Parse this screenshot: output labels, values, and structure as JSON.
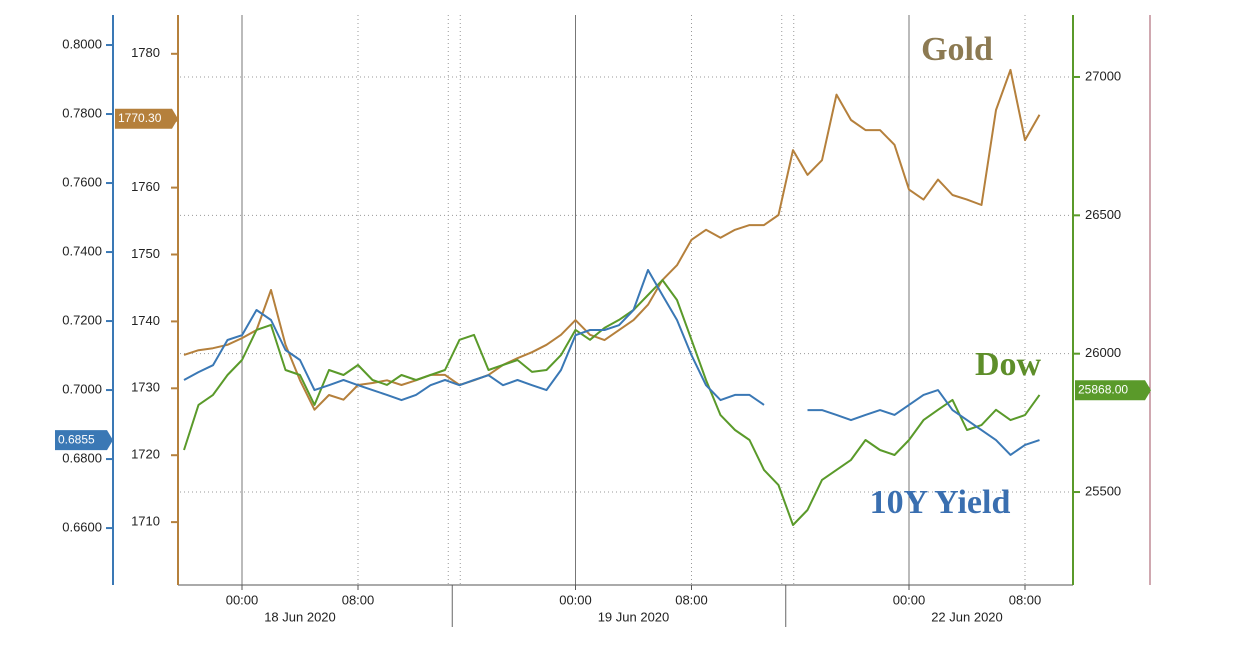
{
  "chart_data": {
    "type": "line",
    "categories": [
      null,
      null,
      null,
      null,
      "00:00",
      null,
      null,
      null,
      null,
      null,
      null,
      null,
      "08:00",
      null,
      null,
      null,
      null,
      null,
      null,
      null,
      null,
      null,
      null,
      null,
      null,
      null,
      null,
      "00:00",
      null,
      null,
      null,
      null,
      null,
      null,
      null,
      "08:00",
      null,
      null,
      null,
      null,
      null,
      null,
      null,
      null,
      null,
      null,
      null,
      null,
      null,
      null,
      "00:00",
      null,
      null,
      null,
      null,
      null,
      null,
      null,
      "08:00",
      null
    ],
    "date_labels": [
      "18 Jun 2020",
      "19 Jun 2020",
      "22 Jun 2020"
    ],
    "ylim": [
      1700.6,
      1785.8
    ],
    "yticks": [
      1710,
      1720,
      1730,
      1740,
      1750,
      1760,
      1770,
      1780
    ],
    "y2lim": [
      25164,
      27224
    ],
    "y2ticks": [
      25500,
      26000,
      26500,
      27000
    ],
    "y3lim": [
      0.6435,
      0.8087
    ],
    "y3ticks": [
      {
        "value": 0.66,
        "label": "0.6600"
      },
      {
        "value": 0.68,
        "label": "0.6800"
      },
      {
        "value": 0.7,
        "label": "0.7000"
      },
      {
        "value": 0.72,
        "label": "0.7200"
      },
      {
        "value": 0.74,
        "label": "0.7400"
      },
      {
        "value": 0.76,
        "label": "0.7600"
      },
      {
        "value": 0.78,
        "label": "0.7800"
      },
      {
        "value": 0.8,
        "label": "0.8000"
      }
    ],
    "grid": true,
    "series": [
      {
        "name": "Gold",
        "color": "#b5803c",
        "axis": "y",
        "last_value": {
          "value": 1770.3,
          "label": "1770.30"
        },
        "values": [
          1735.0,
          1735.7,
          1736.0,
          1736.5,
          1737.5,
          1738.7,
          1744.7,
          1736.5,
          1731.2,
          1726.8,
          1729.0,
          1728.3,
          1730.5,
          1730.8,
          1731.2,
          1730.5,
          1731.2,
          1732.0,
          1732.0,
          1730.5,
          1731.2,
          1732.0,
          1733.5,
          1734.5,
          1735.4,
          1736.5,
          1738.0,
          1740.2,
          1738.0,
          1737.2,
          1738.7,
          1740.2,
          1742.5,
          1746.2,
          1748.4,
          1752.2,
          1753.7,
          1752.5,
          1753.7,
          1754.4,
          1754.4,
          1755.9,
          1765.6,
          1761.9,
          1764.1,
          1773.9,
          1770.1,
          1768.6,
          1768.6,
          1766.4,
          1759.7,
          1758.2,
          1761.2,
          1758.9,
          1758.2,
          1757.4,
          1771.6,
          1777.6,
          1767.1,
          1770.9
        ]
      },
      {
        "name": "Dow",
        "color": "#5a9a2a",
        "axis": "y2",
        "last_value": {
          "value": 25868,
          "label": "25868.00"
        },
        "values": [
          25652,
          25815,
          25851,
          25923,
          25977,
          26086,
          26104,
          25941,
          25923,
          25815,
          25941,
          25923,
          25959,
          25905,
          25887,
          25923,
          25905,
          25923,
          25941,
          26050,
          26068,
          25941,
          25959,
          25977,
          25934,
          25941,
          25995,
          26086,
          26050,
          26093,
          26122,
          26158,
          26212,
          26266,
          26194,
          26050,
          25905,
          25778,
          25724,
          25688,
          25580,
          25525,
          25381,
          25435,
          25544,
          25580,
          25616,
          25688,
          25652,
          25634,
          25688,
          25760,
          25797,
          25833,
          25724,
          25742,
          25797,
          25760,
          25778,
          25851
        ]
      },
      {
        "name": "10Y Yield",
        "color": "#3a78b5",
        "axis": "y3",
        "last_value": {
          "value": 0.6855,
          "label": "0.6855"
        },
        "values": [
          0.7029,
          0.7052,
          0.7072,
          0.7145,
          0.7159,
          0.7232,
          0.7203,
          0.7116,
          0.7087,
          0.7,
          0.7014,
          0.7029,
          0.7014,
          0.7,
          0.6986,
          0.6971,
          0.6986,
          0.7014,
          0.7029,
          0.7014,
          0.7029,
          0.7043,
          0.7014,
          0.7029,
          0.7014,
          0.7,
          0.7058,
          0.7159,
          0.7174,
          0.7174,
          0.7188,
          0.7232,
          0.7348,
          0.7275,
          0.7203,
          0.7101,
          0.7014,
          0.6971,
          0.6986,
          0.6986,
          0.6957,
          null,
          null,
          0.6942,
          0.6942,
          0.6928,
          0.6913,
          0.6928,
          0.6942,
          0.6928,
          0.6957,
          0.6986,
          0.7,
          0.6942,
          0.6913,
          0.6884,
          0.6855,
          0.6812,
          0.6841,
          0.6855
        ]
      }
    ]
  }
}
